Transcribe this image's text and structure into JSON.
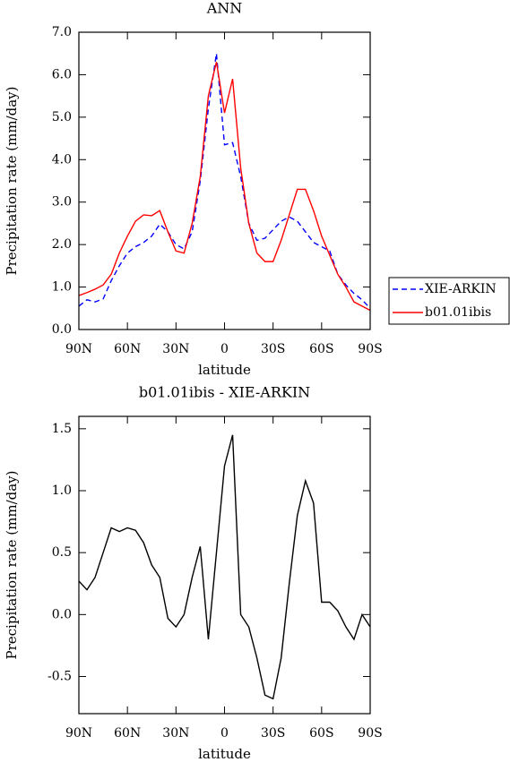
{
  "chart_data": [
    {
      "type": "line",
      "title": "ANN",
      "xlabel": "latitude",
      "ylabel": "Precipitation rate (mm/day)",
      "x": [
        90,
        85,
        80,
        75,
        70,
        65,
        60,
        55,
        50,
        45,
        40,
        35,
        30,
        25,
        20,
        15,
        10,
        5,
        0,
        -5,
        -10,
        -15,
        -20,
        -25,
        -30,
        -35,
        -40,
        -45,
        -50,
        -55,
        -60,
        -65,
        -70,
        -75,
        -80,
        -85,
        -90
      ],
      "series": [
        {
          "name": "XIE-ARKIN",
          "color": "#0000ff",
          "linestyle": "dashed",
          "values": [
            0.55,
            0.7,
            0.65,
            0.72,
            1.15,
            1.5,
            1.8,
            1.95,
            2.05,
            2.2,
            2.48,
            2.3,
            2.0,
            1.9,
            2.3,
            3.5,
            5.2,
            6.5,
            4.35,
            4.4,
            3.6,
            2.5,
            2.1,
            2.15,
            2.35,
            2.55,
            2.65,
            2.55,
            2.3,
            2.05,
            1.95,
            1.85,
            1.3,
            1.05,
            0.85,
            0.7,
            0.5
          ]
        },
        {
          "name": "b01.01ibis",
          "color": "#ff0000",
          "linestyle": "solid",
          "values": [
            0.8,
            0.87,
            0.95,
            1.05,
            1.3,
            1.8,
            2.2,
            2.55,
            2.7,
            2.68,
            2.8,
            2.3,
            1.85,
            1.8,
            2.5,
            3.6,
            5.5,
            6.3,
            5.1,
            5.9,
            3.8,
            2.5,
            1.8,
            1.6,
            1.6,
            2.1,
            2.7,
            3.3,
            3.3,
            2.8,
            2.2,
            1.75,
            1.3,
            1.0,
            0.65,
            0.55,
            0.45
          ]
        }
      ],
      "xlim": [
        90,
        -90
      ],
      "xticks": [
        {
          "value": 90,
          "label": "90N"
        },
        {
          "value": 60,
          "label": "60N"
        },
        {
          "value": 30,
          "label": "30N"
        },
        0,
        {
          "value": -30,
          "label": "30S"
        },
        {
          "value": -60,
          "label": "60S"
        },
        {
          "value": -90,
          "label": "90S"
        }
      ],
      "ylim": [
        0,
        7
      ],
      "yticks": [
        {
          "value": 0,
          "label": "0.0"
        },
        {
          "value": 1,
          "label": "1.0"
        },
        {
          "value": 2,
          "label": "2.0"
        },
        {
          "value": 3,
          "label": "3.0"
        },
        {
          "value": 4,
          "label": "4.0"
        },
        {
          "value": 5,
          "label": "5.0"
        },
        {
          "value": 6,
          "label": "6.0"
        },
        {
          "value": 7,
          "label": "7.0"
        }
      ],
      "legend": "right"
    },
    {
      "type": "line",
      "title": "b01.01ibis  -  XIE-ARKIN",
      "xlabel": "latitude",
      "ylabel": "Precipitation rate (mm/day)",
      "x": [
        90,
        85,
        80,
        75,
        70,
        65,
        60,
        55,
        50,
        45,
        40,
        35,
        30,
        25,
        20,
        15,
        10,
        5,
        0,
        -5,
        -10,
        -15,
        -20,
        -25,
        -30,
        -35,
        -40,
        -45,
        -50,
        -55,
        -60,
        -65,
        -70,
        -75,
        -80,
        -85,
        -90
      ],
      "series": [
        {
          "color": "#000000",
          "linestyle": "solid",
          "values": [
            0.27,
            0.2,
            0.3,
            0.5,
            0.7,
            0.67,
            0.7,
            0.68,
            0.58,
            0.4,
            0.3,
            -0.03,
            -0.1,
            0.0,
            0.3,
            0.55,
            -0.2,
            0.5,
            1.2,
            1.45,
            0.0,
            -0.1,
            -0.35,
            -0.65,
            -0.68,
            -0.35,
            0.25,
            0.8,
            1.08,
            0.9,
            0.1,
            0.1,
            0.03,
            -0.1,
            -0.2,
            0.0,
            -0.1
          ]
        }
      ],
      "xlim": [
        90,
        -90
      ],
      "xticks": [
        {
          "value": 90,
          "label": "90N"
        },
        {
          "value": 60,
          "label": "60N"
        },
        {
          "value": 30,
          "label": "30N"
        },
        0,
        {
          "value": -30,
          "label": "30S"
        },
        {
          "value": -60,
          "label": "60S"
        },
        {
          "value": -90,
          "label": "90S"
        }
      ],
      "ylim": [
        -0.8,
        1.6
      ],
      "yticks": [
        -0.5,
        {
          "value": 0,
          "label": "0.0"
        },
        0.5,
        {
          "value": 1,
          "label": "1.0"
        },
        1.5
      ]
    }
  ]
}
